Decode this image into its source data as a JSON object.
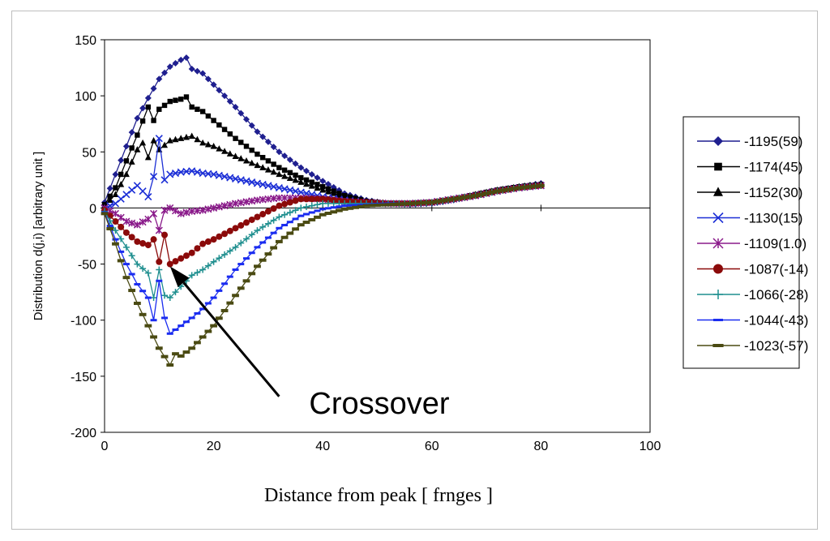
{
  "chart_data": {
    "type": "line",
    "xlabel": "Distance from peak [ frnges ]",
    "ylabel": "Distribution d(j,i) [arbitrary unit ]",
    "xlim": [
      0,
      100
    ],
    "ylim": [
      -200,
      150
    ],
    "x_ticks": [
      0,
      20,
      40,
      60,
      80,
      100
    ],
    "y_ticks": [
      150,
      100,
      50,
      0,
      -50,
      -100,
      -150,
      -200
    ],
    "grid": false,
    "legend_position": "right",
    "annotation": {
      "text": "Crossover",
      "arrow_to": [
        12,
        -52
      ],
      "arrow_from": [
        32,
        -168
      ]
    },
    "series": [
      {
        "name": "-1195(59)",
        "color": "#1f1f8f",
        "marker": "diamond",
        "anchors": [
          [
            0,
            5
          ],
          [
            2,
            30
          ],
          [
            4,
            55
          ],
          [
            6,
            80
          ],
          [
            8,
            98
          ],
          [
            10,
            115
          ],
          [
            12,
            126
          ],
          [
            14,
            132
          ],
          [
            15,
            134
          ],
          [
            16,
            124
          ],
          [
            18,
            120
          ],
          [
            20,
            110
          ],
          [
            24,
            90
          ],
          [
            28,
            68
          ],
          [
            32,
            50
          ],
          [
            36,
            36
          ],
          [
            40,
            24
          ],
          [
            44,
            13
          ],
          [
            48,
            7
          ],
          [
            52,
            4
          ],
          [
            56,
            3
          ],
          [
            60,
            4
          ],
          [
            64,
            7
          ],
          [
            68,
            11
          ],
          [
            72,
            15
          ],
          [
            76,
            19
          ],
          [
            80,
            22
          ]
        ]
      },
      {
        "name": "-1174(45)",
        "color": "#000000",
        "marker": "square",
        "anchors": [
          [
            0,
            3
          ],
          [
            2,
            18
          ],
          [
            4,
            42
          ],
          [
            6,
            65
          ],
          [
            8,
            90
          ],
          [
            9,
            78
          ],
          [
            10,
            88
          ],
          [
            12,
            95
          ],
          [
            14,
            97
          ],
          [
            15,
            99
          ],
          [
            16,
            90
          ],
          [
            18,
            86
          ],
          [
            20,
            78
          ],
          [
            24,
            62
          ],
          [
            28,
            48
          ],
          [
            32,
            36
          ],
          [
            36,
            27
          ],
          [
            40,
            19
          ],
          [
            44,
            11
          ],
          [
            48,
            6
          ],
          [
            52,
            4
          ],
          [
            56,
            4
          ],
          [
            60,
            5
          ],
          [
            64,
            8
          ],
          [
            68,
            12
          ],
          [
            72,
            16
          ],
          [
            76,
            19
          ],
          [
            80,
            21
          ]
        ]
      },
      {
        "name": "-1152(30)",
        "color": "#000000",
        "marker": "triangle",
        "anchors": [
          [
            0,
            2
          ],
          [
            2,
            12
          ],
          [
            4,
            30
          ],
          [
            6,
            52
          ],
          [
            7,
            58
          ],
          [
            8,
            45
          ],
          [
            9,
            60
          ],
          [
            10,
            52
          ],
          [
            12,
            60
          ],
          [
            14,
            62
          ],
          [
            16,
            64
          ],
          [
            18,
            58
          ],
          [
            20,
            55
          ],
          [
            24,
            46
          ],
          [
            28,
            38
          ],
          [
            32,
            30
          ],
          [
            36,
            23
          ],
          [
            40,
            16
          ],
          [
            44,
            10
          ],
          [
            48,
            6
          ],
          [
            52,
            4
          ],
          [
            56,
            4
          ],
          [
            60,
            5
          ],
          [
            64,
            8
          ],
          [
            68,
            12
          ],
          [
            72,
            16
          ],
          [
            76,
            19
          ],
          [
            80,
            21
          ]
        ]
      },
      {
        "name": "-1130(15)",
        "color": "#1c2fd6",
        "marker": "x",
        "anchors": [
          [
            0,
            0
          ],
          [
            2,
            4
          ],
          [
            4,
            12
          ],
          [
            6,
            20
          ],
          [
            8,
            10
          ],
          [
            9,
            28
          ],
          [
            10,
            62
          ],
          [
            11,
            25
          ],
          [
            12,
            30
          ],
          [
            14,
            32
          ],
          [
            16,
            33
          ],
          [
            18,
            31
          ],
          [
            20,
            30
          ],
          [
            24,
            26
          ],
          [
            28,
            22
          ],
          [
            32,
            18
          ],
          [
            36,
            14
          ],
          [
            40,
            10
          ],
          [
            44,
            7
          ],
          [
            48,
            5
          ],
          [
            52,
            4
          ],
          [
            56,
            4
          ],
          [
            60,
            5
          ],
          [
            64,
            8
          ],
          [
            68,
            11
          ],
          [
            72,
            15
          ],
          [
            76,
            18
          ],
          [
            80,
            20
          ]
        ]
      },
      {
        "name": "-1109(1.0)",
        "color": "#8a1a8a",
        "marker": "asterisk",
        "anchors": [
          [
            0,
            0
          ],
          [
            2,
            -5
          ],
          [
            4,
            -12
          ],
          [
            6,
            -15
          ],
          [
            8,
            -10
          ],
          [
            9,
            -5
          ],
          [
            10,
            -20
          ],
          [
            11,
            -2
          ],
          [
            12,
            0
          ],
          [
            14,
            -5
          ],
          [
            16,
            -3
          ],
          [
            18,
            -2
          ],
          [
            20,
            0
          ],
          [
            24,
            4
          ],
          [
            28,
            7
          ],
          [
            32,
            9
          ],
          [
            36,
            9
          ],
          [
            40,
            8
          ],
          [
            44,
            6
          ],
          [
            48,
            5
          ],
          [
            52,
            4
          ],
          [
            56,
            4
          ],
          [
            60,
            5
          ],
          [
            64,
            8
          ],
          [
            68,
            11
          ],
          [
            72,
            15
          ],
          [
            76,
            18
          ],
          [
            80,
            20
          ]
        ]
      },
      {
        "name": "-1087(-14)",
        "color": "#8b0a0a",
        "marker": "circle",
        "anchors": [
          [
            0,
            -2
          ],
          [
            2,
            -12
          ],
          [
            4,
            -22
          ],
          [
            6,
            -30
          ],
          [
            8,
            -33
          ],
          [
            9,
            -28
          ],
          [
            10,
            -48
          ],
          [
            11,
            -24
          ],
          [
            12,
            -50
          ],
          [
            14,
            -45
          ],
          [
            16,
            -40
          ],
          [
            18,
            -32
          ],
          [
            20,
            -28
          ],
          [
            24,
            -18
          ],
          [
            28,
            -8
          ],
          [
            32,
            2
          ],
          [
            36,
            8
          ],
          [
            40,
            8
          ],
          [
            44,
            6
          ],
          [
            48,
            5
          ],
          [
            52,
            4
          ],
          [
            56,
            4
          ],
          [
            60,
            5
          ],
          [
            64,
            8
          ],
          [
            68,
            11
          ],
          [
            72,
            15
          ],
          [
            76,
            18
          ],
          [
            80,
            20
          ]
        ]
      },
      {
        "name": "-1066(-28)",
        "color": "#1f8f8f",
        "marker": "plus",
        "anchors": [
          [
            0,
            -3
          ],
          [
            2,
            -20
          ],
          [
            4,
            -35
          ],
          [
            6,
            -50
          ],
          [
            8,
            -58
          ],
          [
            9,
            -80
          ],
          [
            10,
            -55
          ],
          [
            11,
            -78
          ],
          [
            12,
            -80
          ],
          [
            14,
            -70
          ],
          [
            16,
            -60
          ],
          [
            18,
            -55
          ],
          [
            20,
            -48
          ],
          [
            24,
            -35
          ],
          [
            28,
            -20
          ],
          [
            32,
            -8
          ],
          [
            36,
            0
          ],
          [
            40,
            4
          ],
          [
            44,
            4
          ],
          [
            48,
            4
          ],
          [
            52,
            4
          ],
          [
            56,
            4
          ],
          [
            60,
            5
          ],
          [
            64,
            8
          ],
          [
            68,
            11
          ],
          [
            72,
            15
          ],
          [
            76,
            18
          ],
          [
            80,
            20
          ]
        ]
      },
      {
        "name": "-1044(-43)",
        "color": "#1a2cf0",
        "marker": "dash",
        "anchors": [
          [
            0,
            -4
          ],
          [
            2,
            -28
          ],
          [
            4,
            -50
          ],
          [
            6,
            -68
          ],
          [
            8,
            -80
          ],
          [
            9,
            -100
          ],
          [
            10,
            -65
          ],
          [
            11,
            -98
          ],
          [
            12,
            -112
          ],
          [
            14,
            -105
          ],
          [
            16,
            -98
          ],
          [
            18,
            -90
          ],
          [
            20,
            -80
          ],
          [
            24,
            -55
          ],
          [
            28,
            -35
          ],
          [
            32,
            -18
          ],
          [
            36,
            -7
          ],
          [
            40,
            -1
          ],
          [
            44,
            2
          ],
          [
            48,
            3
          ],
          [
            52,
            4
          ],
          [
            56,
            4
          ],
          [
            60,
            5
          ],
          [
            64,
            8
          ],
          [
            68,
            11
          ],
          [
            72,
            15
          ],
          [
            76,
            18
          ],
          [
            80,
            20
          ]
        ]
      },
      {
        "name": "-1023(-57)",
        "color": "#4a4a12",
        "marker": "bar",
        "anchors": [
          [
            0,
            -5
          ],
          [
            2,
            -32
          ],
          [
            4,
            -62
          ],
          [
            6,
            -85
          ],
          [
            8,
            -105
          ],
          [
            10,
            -125
          ],
          [
            12,
            -140
          ],
          [
            13,
            -130
          ],
          [
            14,
            -132
          ],
          [
            16,
            -125
          ],
          [
            18,
            -115
          ],
          [
            20,
            -105
          ],
          [
            24,
            -78
          ],
          [
            28,
            -52
          ],
          [
            32,
            -30
          ],
          [
            36,
            -15
          ],
          [
            40,
            -6
          ],
          [
            44,
            -1
          ],
          [
            48,
            2
          ],
          [
            52,
            3
          ],
          [
            56,
            4
          ],
          [
            60,
            5
          ],
          [
            64,
            8
          ],
          [
            68,
            11
          ],
          [
            72,
            15
          ],
          [
            76,
            18
          ],
          [
            80,
            20
          ]
        ]
      }
    ]
  }
}
